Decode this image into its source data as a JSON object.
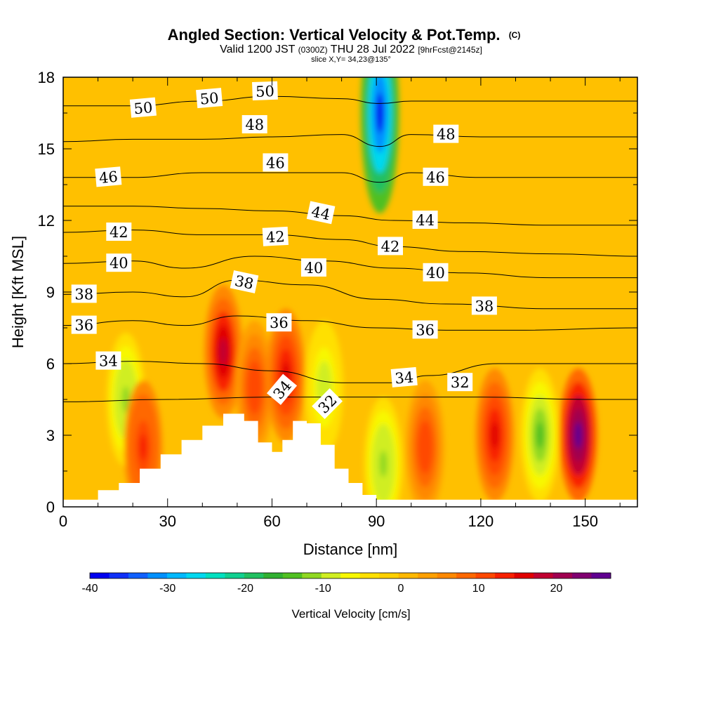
{
  "header": {
    "title": "Angled Section: Vertical Velocity & Pot.Temp.",
    "title_mark": "(C)",
    "valid_prefix": "Valid 1200 JST",
    "valid_utc": "(0300Z)",
    "valid_date": "THU 28 Jul 2022",
    "fcst": "[9hrFcst@2145z]",
    "slice": "slice X,Y= 34,23@135°"
  },
  "chart_data": {
    "type": "heatmap",
    "xlabel": "Distance [nm]",
    "ylabel": "Height [Kft MSL]",
    "xlim": [
      0,
      165
    ],
    "ylim": [
      0,
      18
    ],
    "x_ticks": [
      {
        "value": 0,
        "label": "0"
      },
      {
        "value": 30,
        "label": "30"
      },
      {
        "value": 60,
        "label": "60"
      },
      {
        "value": 90,
        "label": "90"
      },
      {
        "value": 120,
        "label": "120"
      },
      {
        "value": 150,
        "label": "150"
      }
    ],
    "y_ticks": [
      {
        "value": 0,
        "label": "0"
      },
      {
        "value": 3,
        "label": "3"
      },
      {
        "value": 6,
        "label": "6"
      },
      {
        "value": 9,
        "label": "9"
      },
      {
        "value": 12,
        "label": "12"
      },
      {
        "value": 15,
        "label": "15"
      },
      {
        "value": 18,
        "label": "18"
      }
    ],
    "colorbar": {
      "label": "Vertical Velocity [cm/s]",
      "range": [
        -40,
        27
      ],
      "ticks": [
        {
          "value": -40,
          "label": "-40"
        },
        {
          "value": -30,
          "label": "-30"
        },
        {
          "value": -20,
          "label": "-20"
        },
        {
          "value": -10,
          "label": "-10"
        },
        {
          "value": 0,
          "label": "0"
        },
        {
          "value": 10,
          "label": "10"
        },
        {
          "value": 20,
          "label": "20"
        }
      ],
      "colors": [
        "#0000f0",
        "#1030f8",
        "#1060ff",
        "#0090ff",
        "#00b8ff",
        "#00d8f0",
        "#00e0c0",
        "#10d090",
        "#20c060",
        "#30b030",
        "#50c020",
        "#90d820",
        "#d0ee20",
        "#f8f800",
        "#ffe000",
        "#ffd000",
        "#ffb800",
        "#ffa000",
        "#ff8800",
        "#ff6800",
        "#ff4800",
        "#f82000",
        "#e00000",
        "#c00030",
        "#a00050",
        "#800070",
        "#600090"
      ]
    },
    "vertical_velocity_features": [
      {
        "x": 18,
        "z": 4.5,
        "w": -12
      },
      {
        "x": 23,
        "z": 2.5,
        "w": 14
      },
      {
        "x": 46,
        "z": 6.5,
        "w": 18
      },
      {
        "x": 55,
        "z": 5.0,
        "w": 12
      },
      {
        "x": 64,
        "z": 5.5,
        "w": 17
      },
      {
        "x": 75,
        "z": 5.0,
        "w": -10
      },
      {
        "x": 91,
        "z": 16.5,
        "w": -38
      },
      {
        "x": 92,
        "z": 1.8,
        "w": -12
      },
      {
        "x": 104,
        "z": 2.5,
        "w": 12
      },
      {
        "x": 124,
        "z": 3.0,
        "w": 16
      },
      {
        "x": 137,
        "z": 3.0,
        "w": -14
      },
      {
        "x": 148,
        "z": 3.0,
        "w": 26
      }
    ],
    "terrain": [
      {
        "x": 0,
        "z": 0
      },
      {
        "x": 10,
        "z": 0.7
      },
      {
        "x": 16,
        "z": 1.0
      },
      {
        "x": 22,
        "z": 1.6
      },
      {
        "x": 28,
        "z": 2.2
      },
      {
        "x": 34,
        "z": 2.8
      },
      {
        "x": 40,
        "z": 3.4
      },
      {
        "x": 46,
        "z": 3.9
      },
      {
        "x": 52,
        "z": 3.6
      },
      {
        "x": 56,
        "z": 2.7
      },
      {
        "x": 60,
        "z": 2.3
      },
      {
        "x": 63,
        "z": 2.8
      },
      {
        "x": 66,
        "z": 3.6
      },
      {
        "x": 70,
        "z": 3.5
      },
      {
        "x": 74,
        "z": 2.6
      },
      {
        "x": 78,
        "z": 1.6
      },
      {
        "x": 82,
        "z": 1.0
      },
      {
        "x": 86,
        "z": 0.5
      },
      {
        "x": 90,
        "z": 0
      }
    ],
    "contours": [
      {
        "theta": 32,
        "label": "32",
        "points": [
          [
            0,
            4.4
          ],
          [
            30,
            4.5
          ],
          [
            60,
            4.6
          ],
          [
            90,
            4.6
          ],
          [
            120,
            4.6
          ],
          [
            150,
            4.5
          ],
          [
            165,
            4.5
          ]
        ]
      },
      {
        "theta": 34,
        "label": "34",
        "points": [
          [
            0,
            6.0
          ],
          [
            20,
            6.1
          ],
          [
            40,
            6.0
          ],
          [
            60,
            5.7
          ],
          [
            80,
            5.2
          ],
          [
            95,
            5.2
          ],
          [
            105,
            5.5
          ],
          [
            125,
            6.0
          ],
          [
            150,
            6.0
          ],
          [
            165,
            6.0
          ]
        ]
      },
      {
        "theta": 36,
        "label": "36",
        "points": [
          [
            0,
            7.6
          ],
          [
            20,
            7.8
          ],
          [
            35,
            7.6
          ],
          [
            50,
            8.0
          ],
          [
            70,
            7.8
          ],
          [
            90,
            7.5
          ],
          [
            110,
            7.4
          ],
          [
            130,
            7.4
          ],
          [
            165,
            7.5
          ]
        ]
      },
      {
        "theta": 38,
        "label": "38",
        "points": [
          [
            0,
            8.9
          ],
          [
            20,
            9.0
          ],
          [
            35,
            8.8
          ],
          [
            50,
            9.5
          ],
          [
            70,
            9.3
          ],
          [
            90,
            8.7
          ],
          [
            110,
            8.5
          ],
          [
            140,
            8.3
          ],
          [
            165,
            8.3
          ]
        ]
      },
      {
        "theta": 40,
        "label": "40",
        "points": [
          [
            0,
            10.2
          ],
          [
            20,
            10.3
          ],
          [
            35,
            10.0
          ],
          [
            55,
            10.5
          ],
          [
            75,
            10.3
          ],
          [
            95,
            10.0
          ],
          [
            115,
            9.8
          ],
          [
            140,
            9.6
          ],
          [
            165,
            9.6
          ]
        ]
      },
      {
        "theta": 42,
        "label": "42",
        "points": [
          [
            0,
            11.5
          ],
          [
            20,
            11.6
          ],
          [
            40,
            11.4
          ],
          [
            60,
            11.4
          ],
          [
            80,
            11.2
          ],
          [
            95,
            10.9
          ],
          [
            115,
            10.7
          ],
          [
            140,
            10.6
          ],
          [
            165,
            10.5
          ]
        ]
      },
      {
        "theta": 44,
        "label": "44",
        "points": [
          [
            0,
            12.6
          ],
          [
            20,
            12.6
          ],
          [
            40,
            12.5
          ],
          [
            60,
            12.4
          ],
          [
            80,
            12.2
          ],
          [
            95,
            12.0
          ],
          [
            115,
            11.9
          ],
          [
            140,
            11.8
          ],
          [
            165,
            11.8
          ]
        ]
      },
      {
        "theta": 46,
        "label": "46",
        "points": [
          [
            0,
            13.8
          ],
          [
            20,
            13.8
          ],
          [
            40,
            14.0
          ],
          [
            60,
            14.0
          ],
          [
            80,
            14.0
          ],
          [
            91,
            13.6
          ],
          [
            100,
            14.0
          ],
          [
            120,
            13.8
          ],
          [
            165,
            13.8
          ]
        ]
      },
      {
        "theta": 48,
        "label": "48",
        "points": [
          [
            0,
            15.3
          ],
          [
            20,
            15.4
          ],
          [
            40,
            15.4
          ],
          [
            60,
            15.5
          ],
          [
            80,
            15.6
          ],
          [
            91,
            15.1
          ],
          [
            100,
            15.6
          ],
          [
            120,
            15.5
          ],
          [
            165,
            15.5
          ]
        ]
      },
      {
        "theta": 50,
        "label": "50",
        "points": [
          [
            0,
            16.8
          ],
          [
            20,
            16.8
          ],
          [
            40,
            17.0
          ],
          [
            60,
            17.2
          ],
          [
            80,
            17.1
          ],
          [
            91,
            16.9
          ],
          [
            100,
            17.0
          ],
          [
            120,
            17.0
          ],
          [
            165,
            17.0
          ]
        ]
      }
    ],
    "contour_labels": [
      {
        "text": "50",
        "x": 23,
        "z": 16.7,
        "angle": -5
      },
      {
        "text": "50",
        "x": 42,
        "z": 17.1,
        "angle": -5
      },
      {
        "text": "50",
        "x": 58,
        "z": 17.4,
        "angle": -2
      },
      {
        "text": "48",
        "x": 55,
        "z": 16.0,
        "angle": 0
      },
      {
        "text": "48",
        "x": 110,
        "z": 15.6,
        "angle": 0
      },
      {
        "text": "46",
        "x": 13,
        "z": 13.8,
        "angle": -5
      },
      {
        "text": "46",
        "x": 61,
        "z": 14.4,
        "angle": 0
      },
      {
        "text": "46",
        "x": 107,
        "z": 13.8,
        "angle": 0
      },
      {
        "text": "44",
        "x": 74,
        "z": 12.3,
        "angle": 12
      },
      {
        "text": "44",
        "x": 104,
        "z": 12.0,
        "angle": 0
      },
      {
        "text": "42",
        "x": 16,
        "z": 11.5,
        "angle": 0
      },
      {
        "text": "42",
        "x": 61,
        "z": 11.3,
        "angle": -3
      },
      {
        "text": "42",
        "x": 94,
        "z": 10.9,
        "angle": 0
      },
      {
        "text": "40",
        "x": 16,
        "z": 10.2,
        "angle": 0
      },
      {
        "text": "40",
        "x": 72,
        "z": 10.0,
        "angle": 0
      },
      {
        "text": "40",
        "x": 107,
        "z": 9.8,
        "angle": 0
      },
      {
        "text": "38",
        "x": 6,
        "z": 8.9,
        "angle": 0
      },
      {
        "text": "38",
        "x": 52,
        "z": 9.4,
        "angle": 12
      },
      {
        "text": "38",
        "x": 121,
        "z": 8.4,
        "angle": 0
      },
      {
        "text": "36",
        "x": 6,
        "z": 7.6,
        "angle": 0
      },
      {
        "text": "36",
        "x": 62,
        "z": 7.7,
        "angle": 0
      },
      {
        "text": "36",
        "x": 104,
        "z": 7.4,
        "angle": 0
      },
      {
        "text": "34",
        "x": 13,
        "z": 6.1,
        "angle": 0
      },
      {
        "text": "34",
        "x": 98,
        "z": 5.4,
        "angle": -5
      },
      {
        "text": "34",
        "x": 63,
        "z": 4.9,
        "angle": -50
      },
      {
        "text": "32",
        "x": 114,
        "z": 5.2,
        "angle": 0
      },
      {
        "text": "32",
        "x": 76,
        "z": 4.3,
        "angle": -45
      }
    ]
  }
}
